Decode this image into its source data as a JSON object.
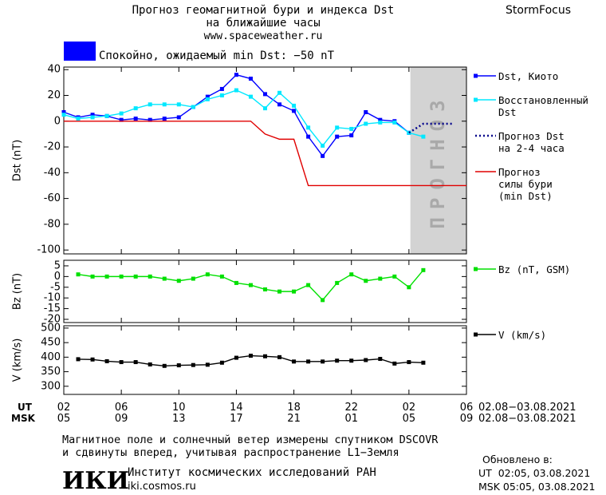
{
  "header": {
    "title": [
      "Прогноз геомагнитной бури и индекса Dst",
      "на ближайшие часы"
    ],
    "url": "www.spaceweather.ru",
    "brand": "StormFocus",
    "status": "Спокойно, ожидаемый min Dst: −50 nT",
    "status_color": "#0000ff"
  },
  "chart_data": [
    {
      "type": "line",
      "ylabel": "Dst (nT)",
      "xlim": [
        0,
        28
      ],
      "ylim": [
        -103,
        42
      ],
      "yticks": [
        40,
        20,
        0,
        -20,
        -40,
        -60,
        -80,
        -100
      ],
      "forecast_region": {
        "xlim": [
          24.1,
          28
        ],
        "label": "ПРОГНОЗ",
        "color": "#d3d3d3"
      },
      "series": [
        {
          "name": "Dst, Киото",
          "color": "#0000ff",
          "style": "solid",
          "markers": true,
          "x": [
            0,
            1,
            2,
            3,
            4,
            5,
            6,
            7,
            8,
            9,
            10,
            11,
            12,
            13,
            14,
            15,
            16,
            17,
            18,
            19,
            20,
            21,
            22,
            23,
            24
          ],
          "values": [
            7,
            3,
            5,
            4,
            1,
            2,
            1,
            2,
            3,
            11,
            19,
            25,
            36,
            33,
            21,
            13,
            8,
            -12,
            -27,
            -12,
            -11,
            7,
            1,
            0,
            -9
          ]
        },
        {
          "name": "Восстановленный\nDst",
          "color": "#00e8ff",
          "style": "solid",
          "markers": true,
          "x": [
            0,
            1,
            2,
            3,
            4,
            5,
            6,
            7,
            8,
            9,
            10,
            11,
            12,
            13,
            14,
            15,
            16,
            17,
            18,
            19,
            20,
            21,
            22,
            23,
            24,
            25
          ],
          "values": [
            5,
            2,
            3,
            4,
            6,
            10,
            13,
            13,
            13,
            11,
            17,
            20,
            24,
            19,
            10,
            22,
            12,
            -5,
            -19,
            -5,
            -6,
            -2,
            -1,
            -1,
            -9,
            -12
          ]
        },
        {
          "name": "Прогноз Dst\nна 2-4 часа",
          "color": "#00008b",
          "style": "dotted",
          "markers": false,
          "x": [
            24,
            25,
            26,
            27
          ],
          "values": [
            -9,
            -2,
            -2,
            -2
          ]
        },
        {
          "name": "Прогноз\nсилы бури\n(min Dst)",
          "color": "#e00000",
          "style": "solid",
          "markers": false,
          "x": [
            0,
            13,
            14,
            15,
            16,
            17,
            28
          ],
          "values": [
            0,
            0,
            -10,
            -14,
            -14,
            -50,
            -50
          ]
        }
      ]
    },
    {
      "type": "line",
      "ylabel": "Bz (nT)",
      "xlim": [
        0,
        28
      ],
      "ylim": [
        -21.5,
        7.6
      ],
      "yticks": [
        5,
        0,
        -5,
        -10,
        -15,
        -20
      ],
      "series": [
        {
          "name": "Bz (nT, GSM)",
          "color": "#00e000",
          "style": "solid",
          "markers": true,
          "x": [
            1,
            2,
            3,
            4,
            5,
            6,
            7,
            8,
            9,
            10,
            11,
            12,
            13,
            14,
            15,
            16,
            17,
            18,
            19,
            20,
            21,
            22,
            23,
            24,
            25
          ],
          "values": [
            1,
            0,
            0,
            0,
            0,
            0,
            -1,
            -2,
            -1,
            1,
            0,
            -3,
            -4,
            -6,
            -7,
            -7,
            -4,
            -11,
            -3,
            1,
            -2,
            -1,
            0,
            -5,
            3
          ]
        }
      ]
    },
    {
      "type": "line",
      "ylabel": "V (km/s)",
      "xlim": [
        0,
        28
      ],
      "ylim": [
        272,
        508
      ],
      "yticks": [
        500,
        450,
        400,
        350,
        300
      ],
      "xticks": [
        {
          "value": 0,
          "label": "02"
        },
        {
          "value": 4,
          "label": "06"
        },
        {
          "value": 8,
          "label": "10"
        },
        {
          "value": 12,
          "label": "14"
        },
        {
          "value": 16,
          "label": "18"
        },
        {
          "value": 20,
          "label": "22"
        },
        {
          "value": 24,
          "label": "02"
        },
        {
          "value": 28,
          "label": "06"
        }
      ],
      "x2ticks": [
        {
          "value": 0,
          "label": "05"
        },
        {
          "value": 4,
          "label": "09"
        },
        {
          "value": 8,
          "label": "13"
        },
        {
          "value": 12,
          "label": "17"
        },
        {
          "value": 16,
          "label": "21"
        },
        {
          "value": 20,
          "label": "01"
        },
        {
          "value": 24,
          "label": "05"
        },
        {
          "value": 28,
          "label": "09"
        }
      ],
      "xlabel": "UT",
      "x2label": "MSK",
      "x_range": "02.08−03.08.2021",
      "x2_range": "02.08−03.08.2021",
      "series": [
        {
          "name": "V (km/s)",
          "color": "#000000",
          "style": "solid",
          "markers": true,
          "x": [
            1,
            2,
            3,
            4,
            5,
            6,
            7,
            8,
            9,
            10,
            11,
            12,
            13,
            14,
            15,
            16,
            17,
            18,
            19,
            20,
            21,
            22,
            23,
            24,
            25
          ],
          "values": [
            393,
            392,
            386,
            383,
            383,
            375,
            370,
            372,
            373,
            374,
            381,
            398,
            405,
            403,
            400,
            385,
            385,
            385,
            388,
            388,
            390,
            394,
            378,
            383,
            381
          ]
        }
      ]
    }
  ],
  "footer": {
    "note": [
      "Магнитное поле и солнечный ветер измерены спутником DSCOVR",
      "и сдвинуты вперед, учитывая распространение L1−Земля"
    ],
    "logo": "ИКИ",
    "institute": "Институт космических исследований РАН",
    "site": "iki.cosmos.ru",
    "updated_title": "Обновлено в:",
    "updated": [
      "UT  02:05, 03.08.2021",
      "MSK 05:05, 03.08.2021"
    ]
  }
}
